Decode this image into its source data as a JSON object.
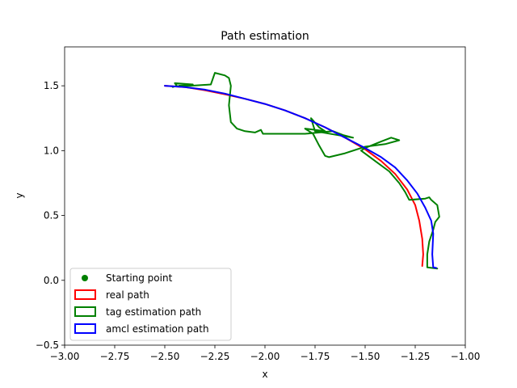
{
  "chart_data": {
    "type": "line",
    "title": "Path estimation",
    "xlabel": "x",
    "ylabel": "y",
    "xlim": [
      -3.0,
      -1.0
    ],
    "ylim": [
      -0.5,
      1.8
    ],
    "xticks": [
      -3.0,
      -2.75,
      -2.5,
      -2.25,
      -2.0,
      -1.75,
      -1.5,
      -1.25,
      -1.0
    ],
    "xtick_labels": [
      "−3.00",
      "−2.75",
      "−2.50",
      "−2.25",
      "−2.00",
      "−1.75",
      "−1.50",
      "−1.25",
      "−1.00"
    ],
    "yticks": [
      -0.5,
      0.0,
      0.5,
      1.0,
      1.5
    ],
    "ytick_labels": [
      "−0.5",
      "0.0",
      "0.5",
      "1.0",
      "1.5"
    ],
    "grid": false,
    "legend_position": "bottom-left",
    "series": [
      {
        "name": "Starting point",
        "kind": "marker",
        "color": "#008000",
        "points": []
      },
      {
        "name": "real path",
        "kind": "line",
        "color": "#ff0000",
        "points": [
          [
            -2.5,
            1.5
          ],
          [
            -2.4,
            1.49
          ],
          [
            -2.3,
            1.465
          ],
          [
            -2.2,
            1.435
          ],
          [
            -2.1,
            1.4
          ],
          [
            -2.0,
            1.36
          ],
          [
            -1.9,
            1.31
          ],
          [
            -1.8,
            1.25
          ],
          [
            -1.7,
            1.18
          ],
          [
            -1.6,
            1.1
          ],
          [
            -1.5,
            1.01
          ],
          [
            -1.42,
            0.92
          ],
          [
            -1.35,
            0.82
          ],
          [
            -1.29,
            0.7
          ],
          [
            -1.25,
            0.58
          ],
          [
            -1.23,
            0.46
          ],
          [
            -1.215,
            0.32
          ],
          [
            -1.21,
            0.2
          ],
          [
            -1.215,
            0.11
          ]
        ]
      },
      {
        "name": "tag estimation path",
        "kind": "line",
        "color": "#008000",
        "points": [
          [
            -2.46,
            1.49
          ],
          [
            -2.44,
            1.5
          ],
          [
            -2.45,
            1.52
          ],
          [
            -2.36,
            1.51
          ],
          [
            -2.43,
            1.5
          ],
          [
            -2.37,
            1.5
          ],
          [
            -2.27,
            1.51
          ],
          [
            -2.25,
            1.6
          ],
          [
            -2.2,
            1.58
          ],
          [
            -2.18,
            1.56
          ],
          [
            -2.17,
            1.5
          ],
          [
            -2.18,
            1.35
          ],
          [
            -2.17,
            1.22
          ],
          [
            -2.14,
            1.17
          ],
          [
            -2.1,
            1.15
          ],
          [
            -2.05,
            1.14
          ],
          [
            -2.02,
            1.16
          ],
          [
            -2.01,
            1.13
          ],
          [
            -1.8,
            1.13
          ],
          [
            -1.66,
            1.15
          ],
          [
            -1.61,
            1.12
          ],
          [
            -1.56,
            1.1
          ],
          [
            -1.6,
            1.11
          ],
          [
            -1.75,
            1.15
          ],
          [
            -1.77,
            1.25
          ],
          [
            -1.73,
            1.18
          ],
          [
            -1.7,
            1.15
          ],
          [
            -1.8,
            1.17
          ],
          [
            -1.76,
            1.13
          ],
          [
            -1.73,
            1.04
          ],
          [
            -1.7,
            0.96
          ],
          [
            -1.68,
            0.95
          ],
          [
            -1.6,
            0.98
          ],
          [
            -1.5,
            1.03
          ],
          [
            -1.4,
            1.05
          ],
          [
            -1.33,
            1.08
          ],
          [
            -1.37,
            1.1
          ],
          [
            -1.42,
            1.07
          ],
          [
            -1.5,
            1.02
          ],
          [
            -1.52,
            1.0
          ],
          [
            -1.45,
            0.92
          ],
          [
            -1.38,
            0.84
          ],
          [
            -1.33,
            0.75
          ],
          [
            -1.3,
            0.68
          ],
          [
            -1.28,
            0.62
          ],
          [
            -1.2,
            0.63
          ],
          [
            -1.18,
            0.64
          ],
          [
            -1.17,
            0.62
          ],
          [
            -1.14,
            0.58
          ],
          [
            -1.13,
            0.49
          ],
          [
            -1.15,
            0.45
          ],
          [
            -1.16,
            0.39
          ],
          [
            -1.18,
            0.3
          ],
          [
            -1.19,
            0.2
          ],
          [
            -1.19,
            0.1
          ],
          [
            -1.14,
            0.09
          ]
        ]
      },
      {
        "name": "amcl estimation path",
        "kind": "line",
        "color": "#0000ff",
        "points": [
          [
            -2.5,
            1.5
          ],
          [
            -2.4,
            1.49
          ],
          [
            -2.3,
            1.47
          ],
          [
            -2.2,
            1.44
          ],
          [
            -2.1,
            1.4
          ],
          [
            -2.0,
            1.36
          ],
          [
            -1.9,
            1.31
          ],
          [
            -1.8,
            1.25
          ],
          [
            -1.7,
            1.18
          ],
          [
            -1.6,
            1.1
          ],
          [
            -1.5,
            1.02
          ],
          [
            -1.42,
            0.95
          ],
          [
            -1.35,
            0.87
          ],
          [
            -1.29,
            0.77
          ],
          [
            -1.24,
            0.67
          ],
          [
            -1.2,
            0.56
          ],
          [
            -1.17,
            0.46
          ],
          [
            -1.16,
            0.36
          ],
          [
            -1.165,
            0.2
          ],
          [
            -1.16,
            0.1
          ],
          [
            -1.145,
            0.095
          ]
        ]
      }
    ]
  }
}
